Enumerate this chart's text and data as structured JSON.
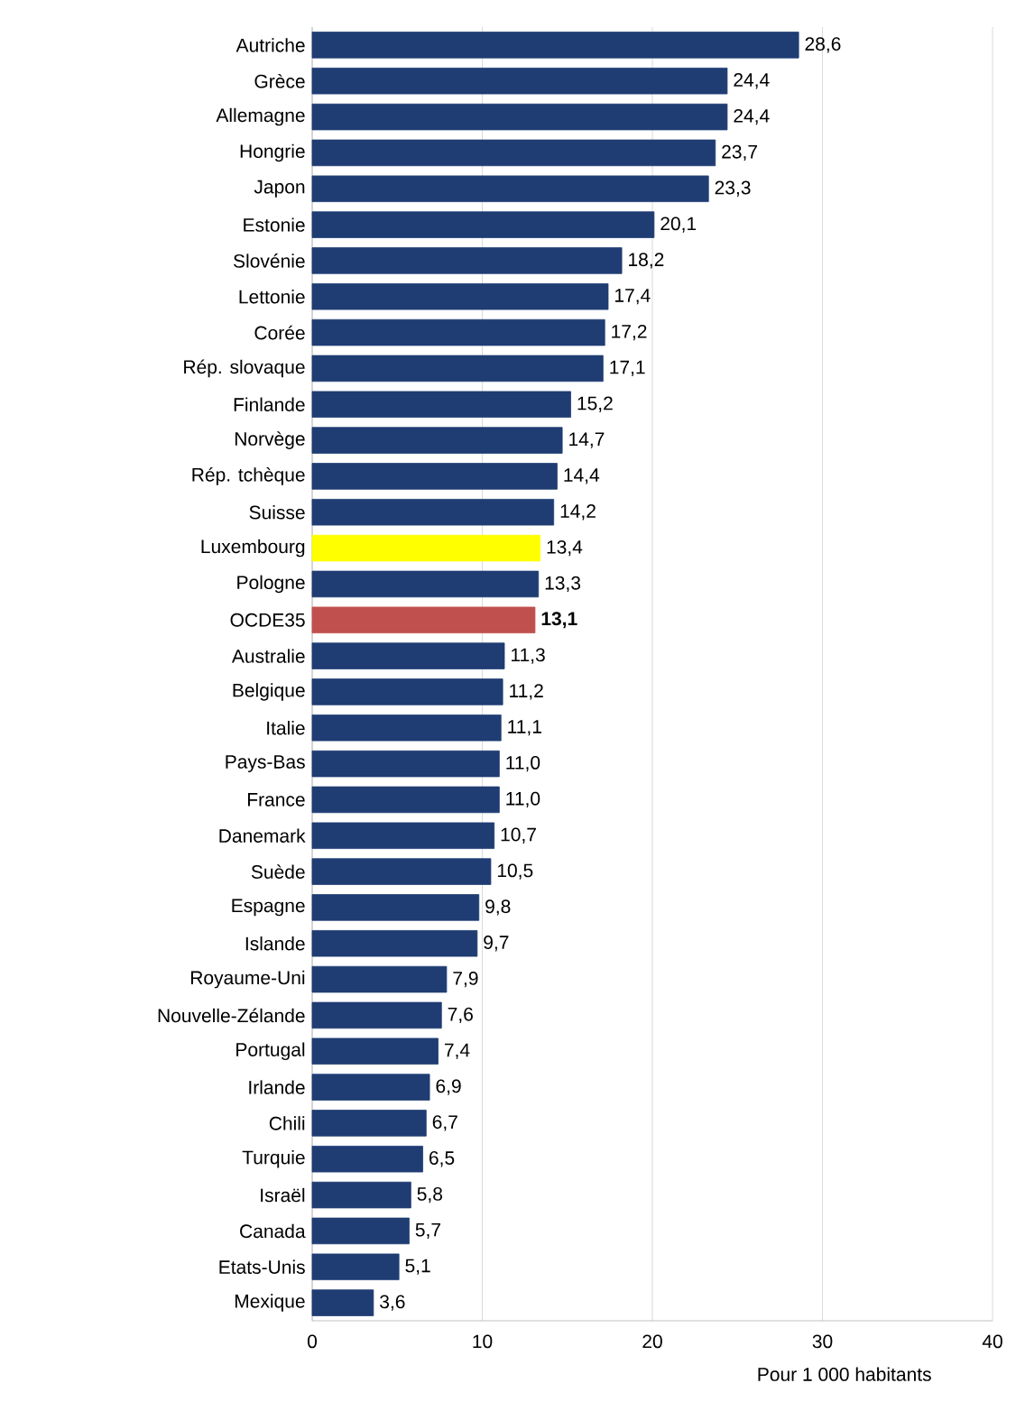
{
  "chart_data": {
    "type": "bar",
    "orientation": "horizontal",
    "xlabel": "Pour 1 000 habitants",
    "categories": [
      "Autriche",
      "Grèce",
      "Allemagne",
      "Hongrie",
      "Japon",
      "Estonie",
      "Slovénie",
      "Lettonie",
      "Corée",
      "Rép. slovaque",
      "Finlande",
      "Norvège",
      "Rép. tchèque",
      "Suisse",
      "Luxembourg",
      "Pologne",
      "OCDE35",
      "Australie",
      "Belgique",
      "Italie",
      "Pays-Bas",
      "France",
      "Danemark",
      "Suède",
      "Espagne",
      "Islande",
      "Royaume-Uni",
      "Nouvelle-Zélande",
      "Portugal",
      "Irlande",
      "Chili",
      "Turquie",
      "Israël",
      "Canada",
      "Etats-Unis",
      "Mexique"
    ],
    "values": [
      28.6,
      24.4,
      24.4,
      23.7,
      23.3,
      20.1,
      18.2,
      17.4,
      17.2,
      17.1,
      15.2,
      14.7,
      14.4,
      14.2,
      13.4,
      13.3,
      13.1,
      11.3,
      11.2,
      11.1,
      11.0,
      11.0,
      10.7,
      10.5,
      9.8,
      9.7,
      7.9,
      7.6,
      7.4,
      6.9,
      6.7,
      6.5,
      5.8,
      5.7,
      5.1,
      3.6
    ],
    "value_labels": [
      "28,6",
      "24,4",
      "24,4",
      "23,7",
      "23,3",
      "20,1",
      "18,2",
      "17,4",
      "17,2",
      "17,1",
      "15,2",
      "14,7",
      "14,4",
      "14,2",
      "13,4",
      "13,3",
      "**13,1**",
      "11,3",
      "11,2",
      "11,1",
      "11,0",
      "11,0",
      "10,7",
      "10,5",
      "9,8",
      "9,7",
      "7,9",
      "7,6",
      "7,4",
      "6,9",
      "6,7",
      "6,5",
      "5,8",
      "5,7",
      "5,1",
      "3,6"
    ],
    "colors": [
      "#1f3d73",
      "#1f3d73",
      "#1f3d73",
      "#1f3d73",
      "#1f3d73",
      "#1f3d73",
      "#1f3d73",
      "#1f3d73",
      "#1f3d73",
      "#1f3d73",
      "#1f3d73",
      "#1f3d73",
      "#1f3d73",
      "#1f3d73",
      "#ffff00",
      "#1f3d73",
      "#c0504d",
      "#1f3d73",
      "#1f3d73",
      "#1f3d73",
      "#1f3d73",
      "#1f3d73",
      "#1f3d73",
      "#1f3d73",
      "#1f3d73",
      "#1f3d73",
      "#1f3d73",
      "#1f3d73",
      "#1f3d73",
      "#1f3d73",
      "#1f3d73",
      "#1f3d73",
      "#1f3d73",
      "#1f3d73",
      "#1f3d73",
      "#1f3d73"
    ],
    "xlim": [
      0,
      40
    ],
    "xticks": [
      0,
      10,
      20,
      30,
      40
    ],
    "grid": "x"
  }
}
